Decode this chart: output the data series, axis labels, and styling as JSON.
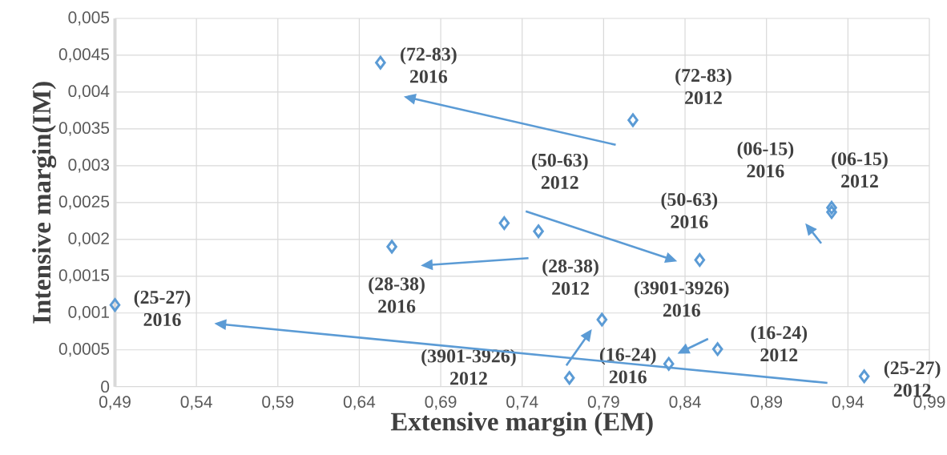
{
  "chart_data": {
    "type": "scatter",
    "xlabel": "Extensive margin (EM)",
    "ylabel": "Intensive margin(IM)",
    "x": [
      0.653,
      0.808,
      0.66,
      0.729,
      0.75,
      0.849,
      0.93,
      0.93,
      0.49,
      0.789,
      0.769,
      0.83,
      0.86,
      0.95
    ],
    "values": [
      0.0044,
      0.00362,
      0.0019,
      0.00222,
      0.00211,
      0.00172,
      0.00243,
      0.00237,
      0.00111,
      0.00091,
      0.00012,
      0.00031,
      0.00051,
      0.00014
    ],
    "color": "#5b9bd5",
    "marker": "diamond",
    "grid": true,
    "xlim": [
      0.49,
      0.99
    ],
    "xticks": [
      {
        "value": 0.49,
        "label": "0,49"
      },
      {
        "value": 0.54,
        "label": "0,54"
      },
      {
        "value": 0.59,
        "label": "0,59"
      },
      {
        "value": 0.64,
        "label": "0,64"
      },
      {
        "value": 0.69,
        "label": "0,69"
      },
      {
        "value": 0.74,
        "label": "0,74"
      },
      {
        "value": 0.79,
        "label": "0,79"
      },
      {
        "value": 0.84,
        "label": "0,84"
      },
      {
        "value": 0.89,
        "label": "0,89"
      },
      {
        "value": 0.94,
        "label": "0,94"
      },
      {
        "value": 0.99,
        "label": "0,99"
      }
    ],
    "ylim": [
      0,
      0.005
    ],
    "yticks": [
      0,
      {
        "value": 0.0005,
        "label": "0,0005"
      },
      {
        "value": 0.001,
        "label": "0,001"
      },
      {
        "value": 0.0015,
        "label": "0,0015"
      },
      {
        "value": 0.002,
        "label": "0,002"
      },
      {
        "value": 0.0025,
        "label": "0,0025"
      },
      {
        "value": 0.003,
        "label": "0,003"
      },
      {
        "value": 0.0035,
        "label": "0,0035"
      },
      {
        "value": 0.004,
        "label": "0,004"
      },
      {
        "value": 0.0045,
        "label": "0,0045"
      },
      {
        "value": 0.005,
        "label": "0,005"
      }
    ],
    "annotations": [
      {
        "text": "(72-83) 2016",
        "x": 0.653,
        "y": 0.0044
      },
      "(72-83) 2012",
      {
        "text": "(28-38) 2016",
        "x": 0.66,
        "y": 0.0019
      },
      "(50-63) 2012",
      {
        "text": "(28-38) 2012",
        "x": 0.75,
        "y": 0.00211
      },
      {
        "text": "(50-63) 2016",
        "x": 0.849,
        "y": 0.00172
      },
      "(06-15) 2016",
      {
        "text": "(06-15) 2012",
        "x": 0.93,
        "y": 0.00237
      },
      {
        "text": "(25-27) 2016",
        "x": 0.49,
        "y": 0.00111
      },
      "(3901-3926) 2016",
      "(3901-3926) 2012",
      {
        "text": "(16-24) 2016",
        "x": 0.83,
        "y": 0.00031
      },
      "(16-24) 2012",
      {
        "text": "(25-27) 2012",
        "x": 0.95,
        "y": 0.00014
      }
    ]
  }
}
